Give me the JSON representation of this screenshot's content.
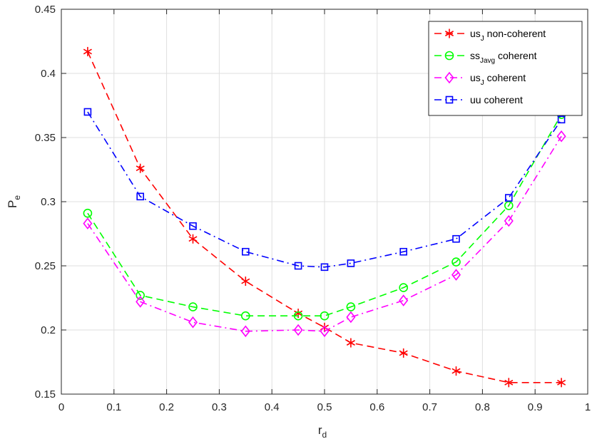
{
  "chart_data": {
    "type": "line",
    "xlabel": "r",
    "xlabel_sub": "d",
    "ylabel": "P",
    "ylabel_sub": "e",
    "xlim": [
      0,
      1
    ],
    "ylim": [
      0.15,
      0.45
    ],
    "xticks": [
      0,
      0.1,
      0.2,
      0.3,
      0.4,
      0.5,
      0.6,
      0.7,
      0.8,
      0.9,
      1
    ],
    "xtick_labels": [
      "0",
      "0.1",
      "0.2",
      "0.3",
      "0.4",
      "0.5",
      "0.6",
      "0.7",
      "0.8",
      "0.9",
      "1"
    ],
    "yticks": [
      0.15,
      0.2,
      0.25,
      0.3,
      0.35,
      0.4,
      0.45
    ],
    "ytick_labels": [
      "0.15",
      "0.2",
      "0.25",
      "0.3",
      "0.35",
      "0.4",
      "0.45"
    ],
    "grid": true,
    "legend_position": "top-right",
    "series": [
      {
        "name": "us",
        "name_sub": "J",
        "name_suffix": " non-coherent",
        "color": "#ff0000",
        "marker": "asterisk",
        "line_style": "dashed",
        "x": [
          0.05,
          0.15,
          0.25,
          0.35,
          0.45,
          0.5,
          0.55,
          0.65,
          0.75,
          0.85,
          0.95
        ],
        "y": [
          0.417,
          0.326,
          0.271,
          0.238,
          0.213,
          0.202,
          0.19,
          0.182,
          0.168,
          0.159,
          0.159
        ]
      },
      {
        "name": "ss",
        "name_sub": "Javg",
        "name_suffix": " coherent",
        "color": "#00ff00",
        "marker": "circle",
        "line_style": "dashed",
        "x": [
          0.05,
          0.15,
          0.25,
          0.35,
          0.45,
          0.5,
          0.55,
          0.65,
          0.75,
          0.85,
          0.95
        ],
        "y": [
          0.291,
          0.227,
          0.218,
          0.211,
          0.211,
          0.211,
          0.218,
          0.233,
          0.253,
          0.297,
          0.368
        ]
      },
      {
        "name": "us",
        "name_sub": "J",
        "name_suffix": " coherent",
        "color": "#ff00ff",
        "marker": "diamond",
        "line_style": "dashdot",
        "x": [
          0.05,
          0.15,
          0.25,
          0.35,
          0.45,
          0.5,
          0.55,
          0.65,
          0.75,
          0.85,
          0.95
        ],
        "y": [
          0.283,
          0.222,
          0.206,
          0.199,
          0.2,
          0.199,
          0.21,
          0.223,
          0.243,
          0.285,
          0.351
        ]
      },
      {
        "name": "uu",
        "name_sub": "",
        "name_suffix": " coherent",
        "color": "#0000ff",
        "marker": "square",
        "line_style": "dashdot",
        "x": [
          0.05,
          0.15,
          0.25,
          0.35,
          0.45,
          0.5,
          0.55,
          0.65,
          0.75,
          0.85,
          0.95
        ],
        "y": [
          0.37,
          0.304,
          0.281,
          0.261,
          0.25,
          0.249,
          0.252,
          0.261,
          0.271,
          0.303,
          0.364
        ]
      }
    ]
  }
}
